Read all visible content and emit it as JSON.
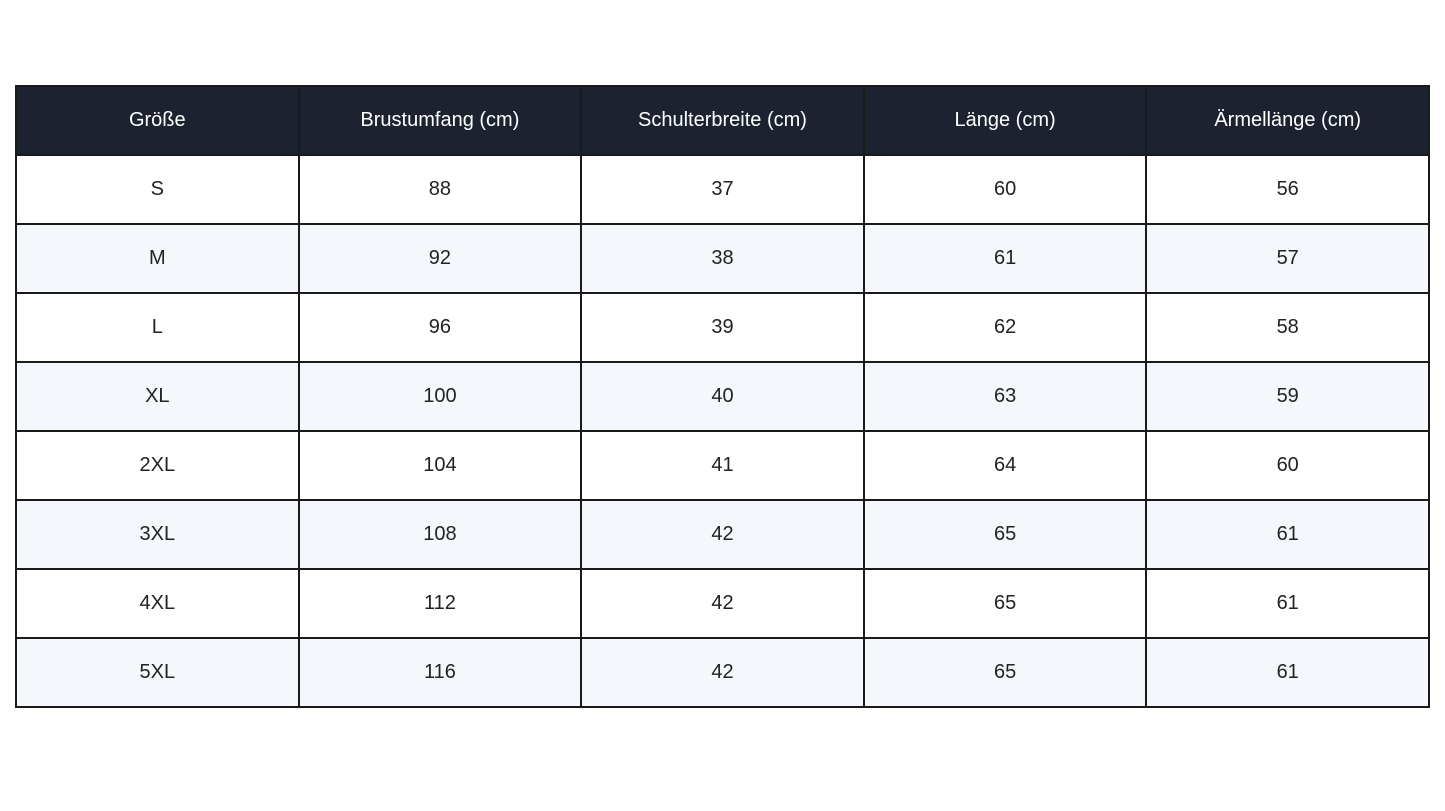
{
  "table": {
    "header": [
      "Größe",
      "Brustumfang (cm)",
      "Schulterbreite (cm)",
      "Länge (cm)",
      "Ärmellänge (cm)"
    ],
    "rows": [
      [
        "S",
        "88",
        "37",
        "60",
        "56"
      ],
      [
        "M",
        "92",
        "38",
        "61",
        "57"
      ],
      [
        "L",
        "96",
        "39",
        "62",
        "58"
      ],
      [
        "XL",
        "100",
        "40",
        "63",
        "59"
      ],
      [
        "2XL",
        "104",
        "41",
        "64",
        "60"
      ],
      [
        "3XL",
        "108",
        "42",
        "65",
        "61"
      ],
      [
        "4XL",
        "112",
        "42",
        "65",
        "61"
      ],
      [
        "5XL",
        "116",
        "42",
        "65",
        "61"
      ]
    ]
  }
}
